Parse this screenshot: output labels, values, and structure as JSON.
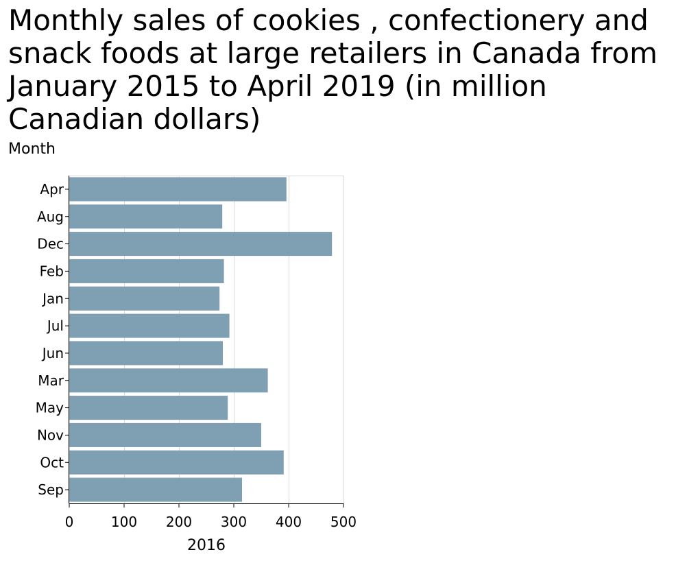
{
  "chart_data": {
    "type": "bar",
    "orientation": "horizontal",
    "title": "Monthly sales of cookies , confectionery and snack foods at large retailers in Canada from January 2015 to April 2019 (in million Canadian dollars)",
    "ylabel": "Month",
    "xlabel": "2016",
    "categories": [
      "Apr",
      "Aug",
      "Dec",
      "Feb",
      "Jan",
      "Jul",
      "Jun",
      "Mar",
      "May",
      "Nov",
      "Oct",
      "Sep"
    ],
    "values": [
      396,
      279,
      479,
      282,
      274,
      292,
      280,
      362,
      289,
      350,
      391,
      315
    ],
    "xlim": [
      0,
      500
    ],
    "xticks": [
      0,
      100,
      200,
      300,
      400,
      500
    ],
    "grid": true,
    "legend": "none",
    "bar_color": "#7f9fb2"
  }
}
